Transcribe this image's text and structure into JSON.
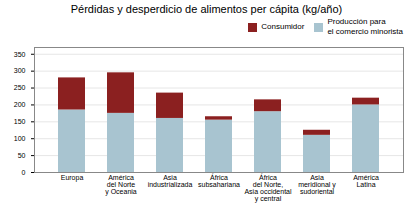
{
  "chart_data": {
    "type": "bar",
    "title": "Pérdidas y desperdicio de alimentos per cápita (kg/año)",
    "categories": [
      "Europa",
      "América\ndel Norte\ny Oceania",
      "Asia\nindustrializada",
      "África\nsubsahariana",
      "África\ndel Norte,\nAsia occidental\ny central",
      "Asia\nmeridional y\nsudoriental",
      "América\nLatina"
    ],
    "series": [
      {
        "name": "Producción para\nel comercio minorista",
        "color": "#a8c4d0",
        "values": [
          185,
          175,
          160,
          155,
          180,
          110,
          200
        ]
      },
      {
        "name": "Consumidor",
        "color": "#8b2020",
        "values": [
          95,
          120,
          75,
          10,
          35,
          15,
          20
        ]
      }
    ],
    "stacked": true,
    "ylim": [
      0,
      370
    ],
    "yticks": [
      0,
      50,
      100,
      150,
      200,
      250,
      300,
      350
    ],
    "grid": true,
    "legend": "upper right"
  }
}
